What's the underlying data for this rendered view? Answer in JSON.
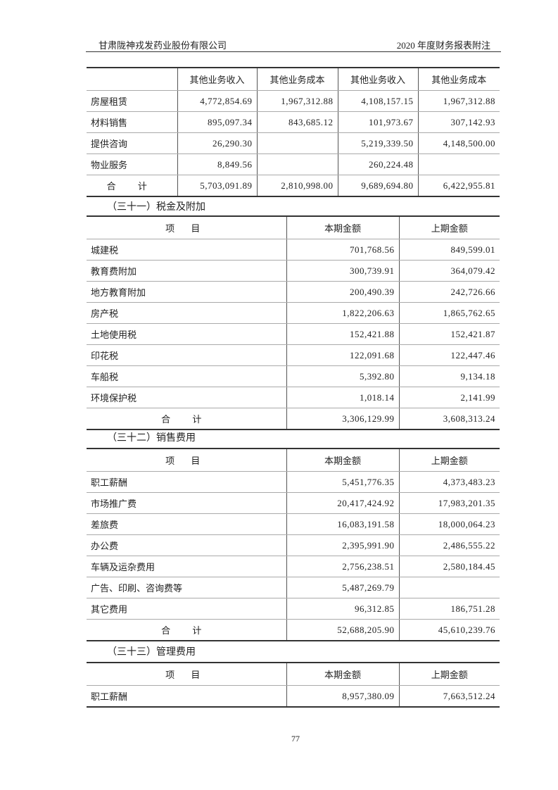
{
  "header": {
    "company": "甘肃陇神戎发药业股份有限公司",
    "doc_title": "2020 年度财务报表附注"
  },
  "other_business": {
    "columns": [
      "",
      "其他业务收入",
      "其他业务成本",
      "其他业务收入",
      "其他业务成本"
    ],
    "rows": [
      {
        "item": "房屋租赁",
        "v": [
          "4,772,854.69",
          "1,967,312.88",
          "4,108,157.15",
          "1,967,312.88"
        ]
      },
      {
        "item": "材料销售",
        "v": [
          "895,097.34",
          "843,685.12",
          "101,973.67",
          "307,142.93"
        ]
      },
      {
        "item": "提供咨询",
        "v": [
          "26,290.30",
          "",
          "5,219,339.50",
          "4,148,500.00"
        ]
      },
      {
        "item": "物业服务",
        "v": [
          "8,849.56",
          "",
          "260,224.48",
          ""
        ]
      },
      {
        "item": "合 计",
        "v": [
          "5,703,091.89",
          "2,810,998.00",
          "9,689,694.80",
          "6,422,955.81"
        ]
      }
    ]
  },
  "taxes": {
    "title": "（三十一）税金及附加",
    "columns": [
      "项 目",
      "本期金额",
      "上期金额"
    ],
    "rows": [
      {
        "item": "城建税",
        "v": [
          "701,768.56",
          "849,599.01"
        ]
      },
      {
        "item": "教育费附加",
        "v": [
          "300,739.91",
          "364,079.42"
        ]
      },
      {
        "item": "地方教育附加",
        "v": [
          "200,490.39",
          "242,726.66"
        ]
      },
      {
        "item": "房产税",
        "v": [
          "1,822,206.63",
          "1,865,762.65"
        ]
      },
      {
        "item": "土地使用税",
        "v": [
          "152,421.88",
          "152,421.87"
        ]
      },
      {
        "item": "印花税",
        "v": [
          "122,091.68",
          "122,447.46"
        ]
      },
      {
        "item": "车船税",
        "v": [
          "5,392.80",
          "9,134.18"
        ]
      },
      {
        "item": "环境保护税",
        "v": [
          "1,018.14",
          "2,141.99"
        ]
      },
      {
        "item": "合 计",
        "v": [
          "3,306,129.99",
          "3,608,313.24"
        ]
      }
    ]
  },
  "selling": {
    "title": "（三十二）销售费用",
    "columns": [
      "项 目",
      "本期金额",
      "上期金额"
    ],
    "rows": [
      {
        "item": "职工薪酬",
        "v": [
          "5,451,776.35",
          "4,373,483.23"
        ]
      },
      {
        "item": "市场推广费",
        "v": [
          "20,417,424.92",
          "17,983,201.35"
        ]
      },
      {
        "item": "差旅费",
        "v": [
          "16,083,191.58",
          "18,000,064.23"
        ]
      },
      {
        "item": "办公费",
        "v": [
          "2,395,991.90",
          "2,486,555.22"
        ]
      },
      {
        "item": "车辆及运杂费用",
        "v": [
          "2,756,238.51",
          "2,580,184.45"
        ]
      },
      {
        "item": "广告、印刷、咨询费等",
        "v": [
          "5,487,269.79",
          ""
        ]
      },
      {
        "item": "其它费用",
        "v": [
          "96,312.85",
          "186,751.28"
        ]
      },
      {
        "item": "合 计",
        "v": [
          "52,688,205.90",
          "45,610,239.76"
        ]
      }
    ]
  },
  "admin": {
    "title": "（三十三）管理费用",
    "columns": [
      "项 目",
      "本期金额",
      "上期金额"
    ],
    "rows": [
      {
        "item": "职工薪酬",
        "v": [
          "8,957,380.09",
          "7,663,512.24"
        ]
      }
    ]
  },
  "page_number": "77"
}
